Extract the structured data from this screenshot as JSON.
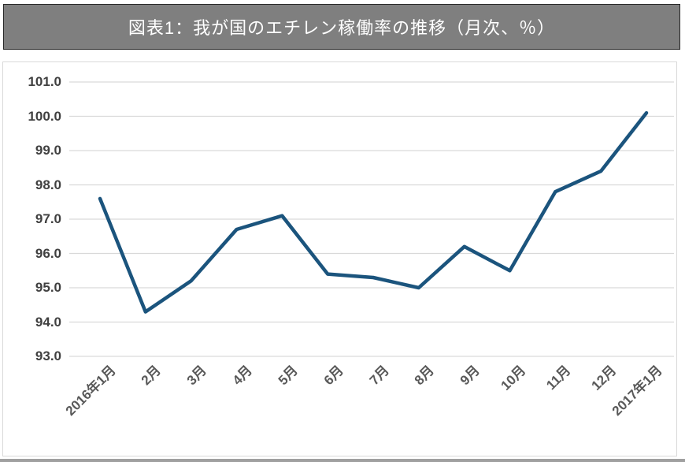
{
  "title": {
    "text": "図表1：我が国のエチレン稼働率の推移（月次、％）"
  },
  "chart_data": {
    "type": "line",
    "title": "図表1：我が国のエチレン稼働率の推移（月次、％）",
    "categories": [
      "2016年1月",
      "2月",
      "3月",
      "4月",
      "5月",
      "6月",
      "7月",
      "8月",
      "9月",
      "10月",
      "11月",
      "12月",
      "2017年1月"
    ],
    "values": [
      97.6,
      94.3,
      95.2,
      96.7,
      97.1,
      95.4,
      95.3,
      95.0,
      96.2,
      95.5,
      97.8,
      98.4,
      100.1
    ],
    "xlabel": "",
    "ylabel": "",
    "ylim": [
      93.0,
      101.0
    ],
    "ytick_step": 1.0,
    "yticks": [
      "101.0",
      "100.0",
      "99.0",
      "98.0",
      "97.0",
      "96.0",
      "95.0",
      "94.0",
      "93.0"
    ],
    "grid": "horizontal",
    "legend": "none",
    "markers": "none"
  },
  "colors": {
    "title_bar_bg": "#7f7f7f",
    "title_bar_border": "#262626",
    "title_text": "#ffffff",
    "frame_border": "#d9d9d9",
    "gridline": "#d9d9d9",
    "line": "#1b547d",
    "y_tick_text": "#404040",
    "x_tick_text": "#595959",
    "bottom_strip": "#a0a0a0"
  }
}
